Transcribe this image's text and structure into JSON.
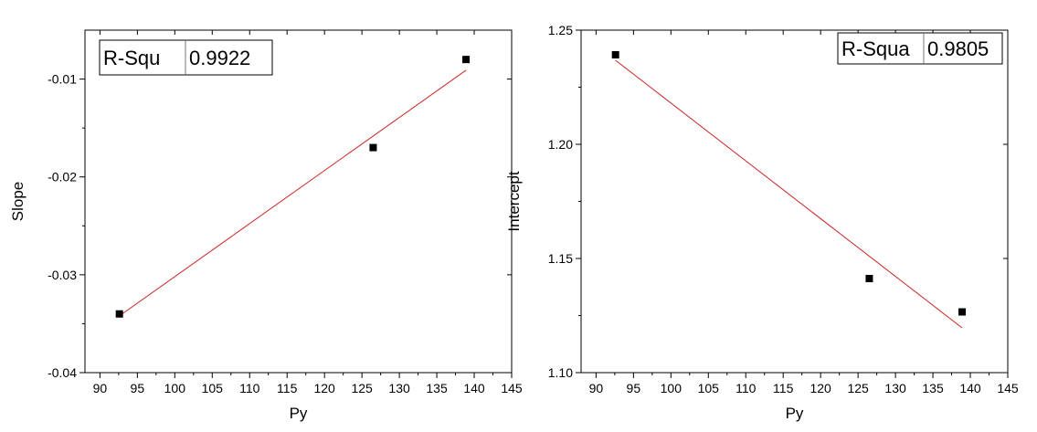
{
  "chart_data": [
    {
      "type": "scatter",
      "xlabel": "Py",
      "ylabel": "Slope",
      "xlim": [
        88,
        145
      ],
      "ylim": [
        -0.04,
        -0.005
      ],
      "xticks": [
        90,
        95,
        100,
        105,
        110,
        115,
        120,
        125,
        130,
        135,
        140,
        145
      ],
      "yticks": [
        -0.04,
        -0.03,
        -0.02,
        -0.01
      ],
      "ytick_labels": [
        "-0.04",
        "-0.03",
        "-0.02",
        "-0.01"
      ],
      "x": [
        92.6,
        126.5,
        138.9
      ],
      "y": [
        -0.034,
        -0.017,
        -0.008
      ],
      "fit_line": {
        "x": [
          92.6,
          138.9
        ],
        "y": [
          -0.0342,
          -0.0091
        ],
        "color": "#cc2222"
      },
      "stat_box": {
        "label": "R-Squ",
        "value": "0.9922"
      },
      "grid": false
    },
    {
      "type": "scatter",
      "xlabel": "Py",
      "ylabel": "Intercept",
      "xlim": [
        88,
        145
      ],
      "ylim": [
        1.1,
        1.25
      ],
      "xticks": [
        90,
        95,
        100,
        105,
        110,
        115,
        120,
        125,
        130,
        135,
        140,
        145
      ],
      "yticks": [
        1.1,
        1.15,
        1.2,
        1.25
      ],
      "ytick_labels": [
        "1.10",
        "1.15",
        "1.20",
        "1.25"
      ],
      "x": [
        92.6,
        126.5,
        138.9
      ],
      "y": [
        1.2392,
        1.1412,
        1.1266
      ],
      "fit_line": {
        "x": [
          92.6,
          138.9
        ],
        "y": [
          1.2368,
          1.1196
        ],
        "color": "#cc2222"
      },
      "stat_box": {
        "label": "R-Squa",
        "value": "0.9805"
      },
      "grid": false
    }
  ]
}
